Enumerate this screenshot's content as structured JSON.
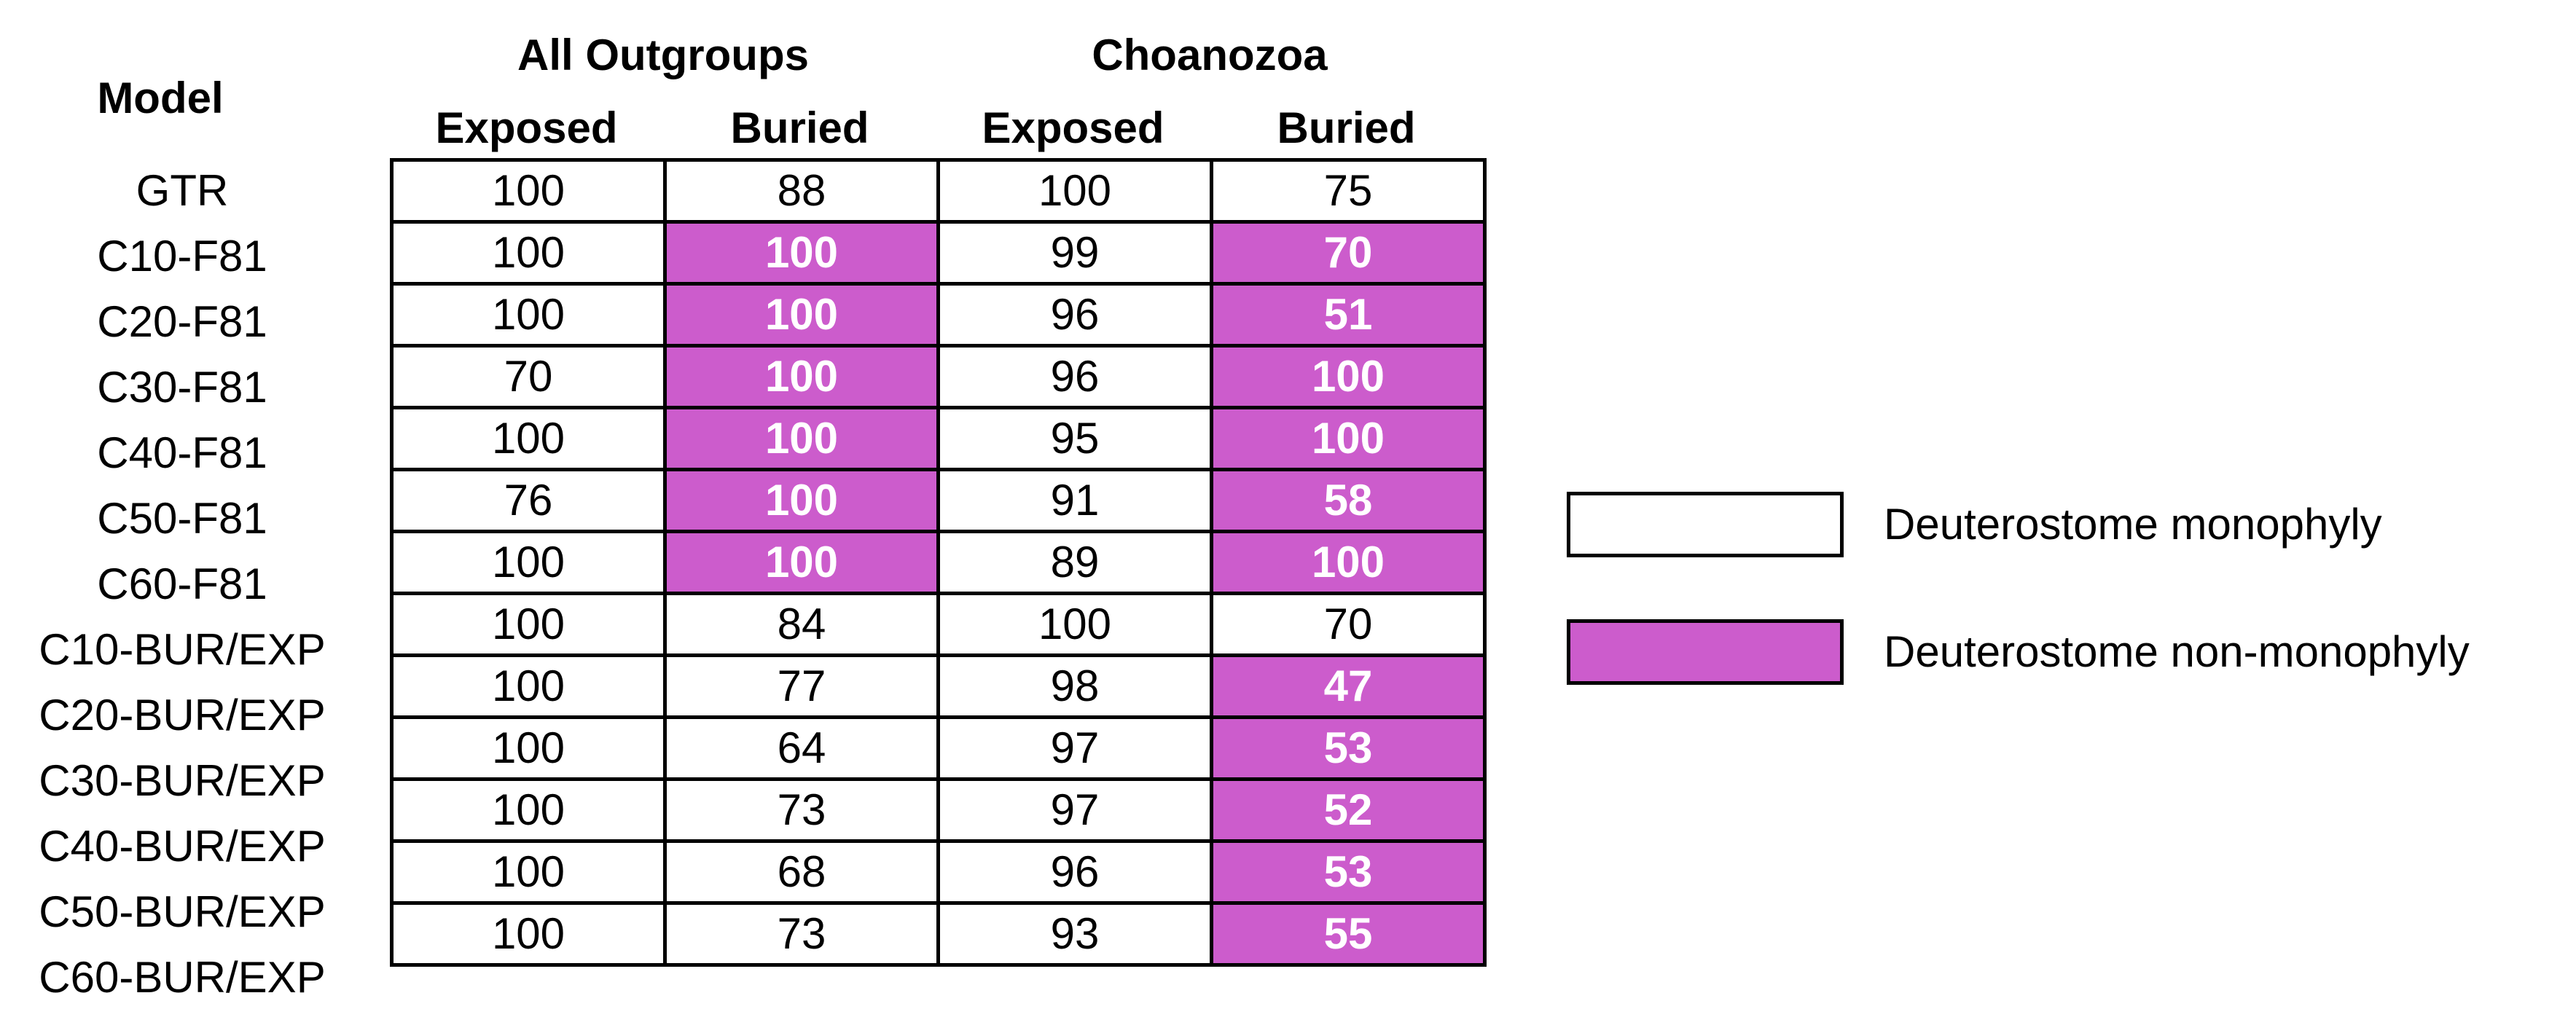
{
  "chart_data": {
    "type": "table",
    "row_header": "Model",
    "column_groups": [
      {
        "label": "All Outgroups",
        "columns": [
          "Exposed",
          "Buried"
        ]
      },
      {
        "label": "Choanozoa",
        "columns": [
          "Exposed",
          "Buried"
        ]
      }
    ],
    "rows": [
      {
        "model": "GTR",
        "values": [
          "100",
          "88",
          "100",
          "75"
        ],
        "nonmonophyly": [
          false,
          false,
          false,
          false
        ]
      },
      {
        "model": "C10-F81",
        "values": [
          "100",
          "100",
          "99",
          "70"
        ],
        "nonmonophyly": [
          false,
          true,
          false,
          true
        ]
      },
      {
        "model": "C20-F81",
        "values": [
          "100",
          "100",
          "96",
          "51"
        ],
        "nonmonophyly": [
          false,
          true,
          false,
          true
        ]
      },
      {
        "model": "C30-F81",
        "values": [
          "70",
          "100",
          "96",
          "100"
        ],
        "nonmonophyly": [
          false,
          true,
          false,
          true
        ]
      },
      {
        "model": "C40-F81",
        "values": [
          "100",
          "100",
          "95",
          "100"
        ],
        "nonmonophyly": [
          false,
          true,
          false,
          true
        ]
      },
      {
        "model": "C50-F81",
        "values": [
          "76",
          "100",
          "91",
          "58"
        ],
        "nonmonophyly": [
          false,
          true,
          false,
          true
        ]
      },
      {
        "model": "C60-F81",
        "values": [
          "100",
          "100",
          "89",
          "100"
        ],
        "nonmonophyly": [
          false,
          true,
          false,
          true
        ]
      },
      {
        "model": "C10-BUR/EXP",
        "values": [
          "100",
          "84",
          "100",
          "70"
        ],
        "nonmonophyly": [
          false,
          false,
          false,
          false
        ]
      },
      {
        "model": "C20-BUR/EXP",
        "values": [
          "100",
          "77",
          "98",
          "47"
        ],
        "nonmonophyly": [
          false,
          false,
          false,
          true
        ]
      },
      {
        "model": "C30-BUR/EXP",
        "values": [
          "100",
          "64",
          "97",
          "53"
        ],
        "nonmonophyly": [
          false,
          false,
          false,
          true
        ]
      },
      {
        "model": "C40-BUR/EXP",
        "values": [
          "100",
          "73",
          "97",
          "52"
        ],
        "nonmonophyly": [
          false,
          false,
          false,
          true
        ]
      },
      {
        "model": "C50-BUR/EXP",
        "values": [
          "100",
          "68",
          "96",
          "53"
        ],
        "nonmonophyly": [
          false,
          false,
          false,
          true
        ]
      },
      {
        "model": "C60-BUR/EXP",
        "values": [
          "100",
          "73",
          "93",
          "55"
        ],
        "nonmonophyly": [
          false,
          false,
          false,
          true
        ]
      }
    ],
    "legend": [
      {
        "label": "Deuterostome monophyly",
        "color": "#ffffff"
      },
      {
        "label": "Deuterostome non-monophyly",
        "color": "#cc5ccc"
      }
    ]
  },
  "colors": {
    "monophyly": "#ffffff",
    "nonmonophyly": "#cc5ccc",
    "border": "#000000"
  }
}
